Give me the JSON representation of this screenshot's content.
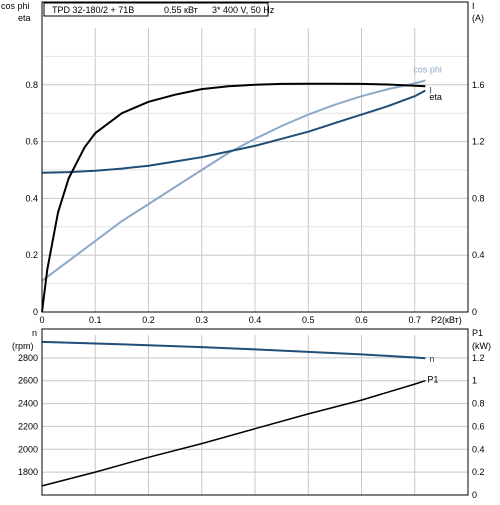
{
  "header": {
    "title": "TPD 32-180/2 + 71B",
    "power": "0.55 кВт",
    "supply": "3* 400 V, 50 Hz"
  },
  "colors": {
    "eta": "#000000",
    "cos_phi": "#8fa8c8",
    "current": "#1f4e79",
    "n": "#1f4e79",
    "p1": "#000000",
    "grid": "#c8c8c8",
    "frame": "#000000"
  },
  "chart_data": [
    {
      "type": "line",
      "panel": "top",
      "x_axis": {
        "label": "P2(кВт)",
        "lim": [
          0,
          0.8
        ],
        "ticks": [
          "0",
          "0.1",
          "0.2",
          "0.3",
          "0.4",
          "0.5",
          "0.6",
          "0.7"
        ]
      },
      "y_left": {
        "label_top": "cos phi",
        "label_bottom": "eta",
        "lim": [
          0,
          1.0
        ],
        "ticks": [
          "0",
          "0.2",
          "0.4",
          "0.6",
          "0.8"
        ]
      },
      "y_right": {
        "label_top": "I",
        "label_bottom": "(A)",
        "lim": [
          0,
          2.0
        ],
        "ticks": [
          "0",
          "0.4",
          "0.8",
          "1.2",
          "1.6"
        ]
      },
      "grid": true,
      "series": [
        {
          "name": "eta",
          "axis": "left",
          "x": [
            0,
            0.01,
            0.03,
            0.05,
            0.08,
            0.1,
            0.15,
            0.2,
            0.25,
            0.3,
            0.35,
            0.4,
            0.45,
            0.5,
            0.55,
            0.6,
            0.65,
            0.7,
            0.72
          ],
          "y": [
            0,
            0.15,
            0.35,
            0.47,
            0.58,
            0.63,
            0.7,
            0.74,
            0.765,
            0.785,
            0.795,
            0.8,
            0.803,
            0.804,
            0.804,
            0.803,
            0.801,
            0.797,
            0.795
          ]
        },
        {
          "name": "cos phi",
          "axis": "left",
          "x": [
            0,
            0.05,
            0.1,
            0.15,
            0.2,
            0.25,
            0.3,
            0.35,
            0.4,
            0.45,
            0.5,
            0.55,
            0.6,
            0.65,
            0.7,
            0.72
          ],
          "y": [
            0.11,
            0.18,
            0.25,
            0.32,
            0.38,
            0.44,
            0.5,
            0.56,
            0.61,
            0.655,
            0.695,
            0.73,
            0.76,
            0.785,
            0.805,
            0.815
          ]
        },
        {
          "name": "I",
          "axis": "right",
          "x": [
            0,
            0.05,
            0.1,
            0.15,
            0.2,
            0.25,
            0.3,
            0.35,
            0.4,
            0.45,
            0.5,
            0.55,
            0.6,
            0.65,
            0.7,
            0.72
          ],
          "y": [
            0.98,
            0.985,
            0.995,
            1.01,
            1.03,
            1.06,
            1.09,
            1.13,
            1.17,
            1.22,
            1.27,
            1.33,
            1.39,
            1.45,
            1.52,
            1.56
          ]
        }
      ]
    },
    {
      "type": "line",
      "panel": "bottom",
      "x_axis": {
        "lim": [
          0,
          0.8
        ]
      },
      "y_left": {
        "label_top": "n",
        "label_bottom": "(rpm)",
        "lim": [
          1600,
          3000
        ],
        "ticks": [
          "1800",
          "2000",
          "2200",
          "2400",
          "2600",
          "2800"
        ]
      },
      "y_right": {
        "label_top": "P1",
        "label_bottom": "(kW)",
        "lim": [
          0,
          1.4
        ],
        "ticks": [
          "0",
          "0.2",
          "0.4",
          "0.6",
          "0.8",
          "1",
          "1.2"
        ]
      },
      "grid": true,
      "series": [
        {
          "name": "n",
          "axis": "left",
          "x": [
            0,
            0.1,
            0.2,
            0.3,
            0.4,
            0.5,
            0.6,
            0.7,
            0.72
          ],
          "y": [
            2940,
            2926,
            2911,
            2894,
            2874,
            2852,
            2830,
            2803,
            2797
          ]
        },
        {
          "name": "P1",
          "axis": "right",
          "x": [
            0,
            0.1,
            0.2,
            0.3,
            0.4,
            0.5,
            0.6,
            0.7,
            0.72
          ],
          "y": [
            0.08,
            0.2,
            0.33,
            0.45,
            0.58,
            0.71,
            0.83,
            0.97,
            1.0
          ]
        }
      ]
    }
  ]
}
